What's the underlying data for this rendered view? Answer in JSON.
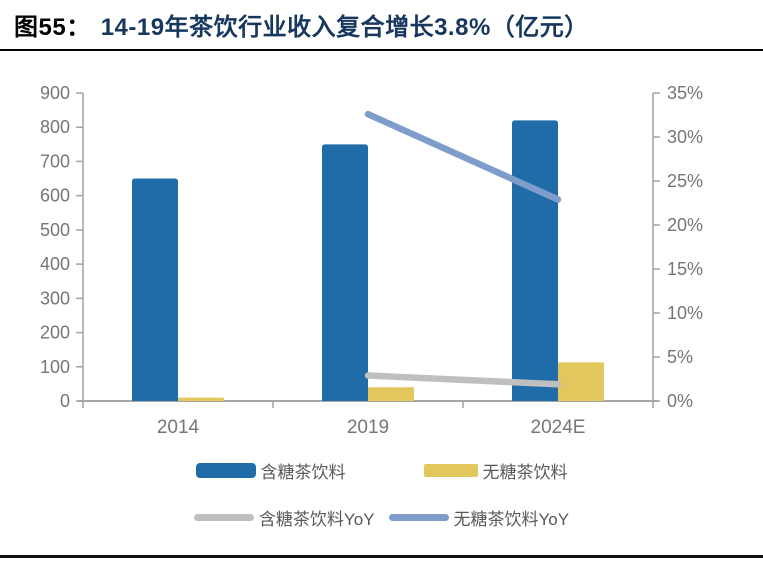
{
  "header": {
    "figure_label": "图55：",
    "title": "14-19年茶饮行业收入复合增长3.8%（亿元）"
  },
  "chart_data": {
    "type": "combo-bar-line",
    "title": "14-19年茶饮行业收入复合增长3.8%（亿元）",
    "categories": [
      "2014",
      "2019",
      "2024E"
    ],
    "bar_series": [
      {
        "name": "含糖茶饮料",
        "color": "#206CA8",
        "axis": "left",
        "values": [
          650,
          750,
          820
        ]
      },
      {
        "name": "无糖茶饮料",
        "color": "#E2C85C",
        "axis": "left",
        "values": [
          10,
          40,
          113
        ]
      }
    ],
    "line_series": [
      {
        "name": "含糖茶饮料YoY",
        "color": "#BFBFBF",
        "axis": "right",
        "values": [
          null,
          2.9,
          1.9
        ]
      },
      {
        "name": "无糖茶饮料YoY",
        "color": "#7E9DCB",
        "axis": "right",
        "values": [
          null,
          32.6,
          22.9
        ]
      }
    ],
    "left_axis": {
      "min": 0,
      "max": 900,
      "step": 100,
      "tick_values": [
        0,
        100,
        200,
        300,
        400,
        500,
        600,
        700,
        800,
        900
      ],
      "tick_labels": [
        "0",
        "100",
        "200",
        "300",
        "400",
        "500",
        "600",
        "700",
        "800",
        "900"
      ]
    },
    "right_axis": {
      "min": 0,
      "max": 35,
      "step": 5,
      "tick_values": [
        0,
        5,
        10,
        15,
        20,
        25,
        30,
        35
      ],
      "tick_labels": [
        "0%",
        "5%",
        "10%",
        "15%",
        "20%",
        "25%",
        "30%",
        "35%"
      ]
    },
    "grid": false,
    "legend_position": "bottom"
  },
  "legend": {
    "items": [
      {
        "label": "含糖茶饮料",
        "swatch": "bar",
        "color": "#206CA8"
      },
      {
        "label": "无糖茶饮料",
        "swatch": "bar",
        "color": "#E2C85C"
      },
      {
        "label": "含糖茶饮料YoY",
        "swatch": "line",
        "color": "#BFBFBF"
      },
      {
        "label": "无糖茶饮料YoY",
        "swatch": "line",
        "color": "#7E9DCB"
      }
    ]
  },
  "colors": {
    "title_text": "#17375E",
    "figure_label_text": "#000000",
    "axis_line": "#A6A6A6",
    "axis_text": "#767676",
    "legend_text": "#595959",
    "header_rule": "#000000",
    "footer_rule": "#111111"
  }
}
